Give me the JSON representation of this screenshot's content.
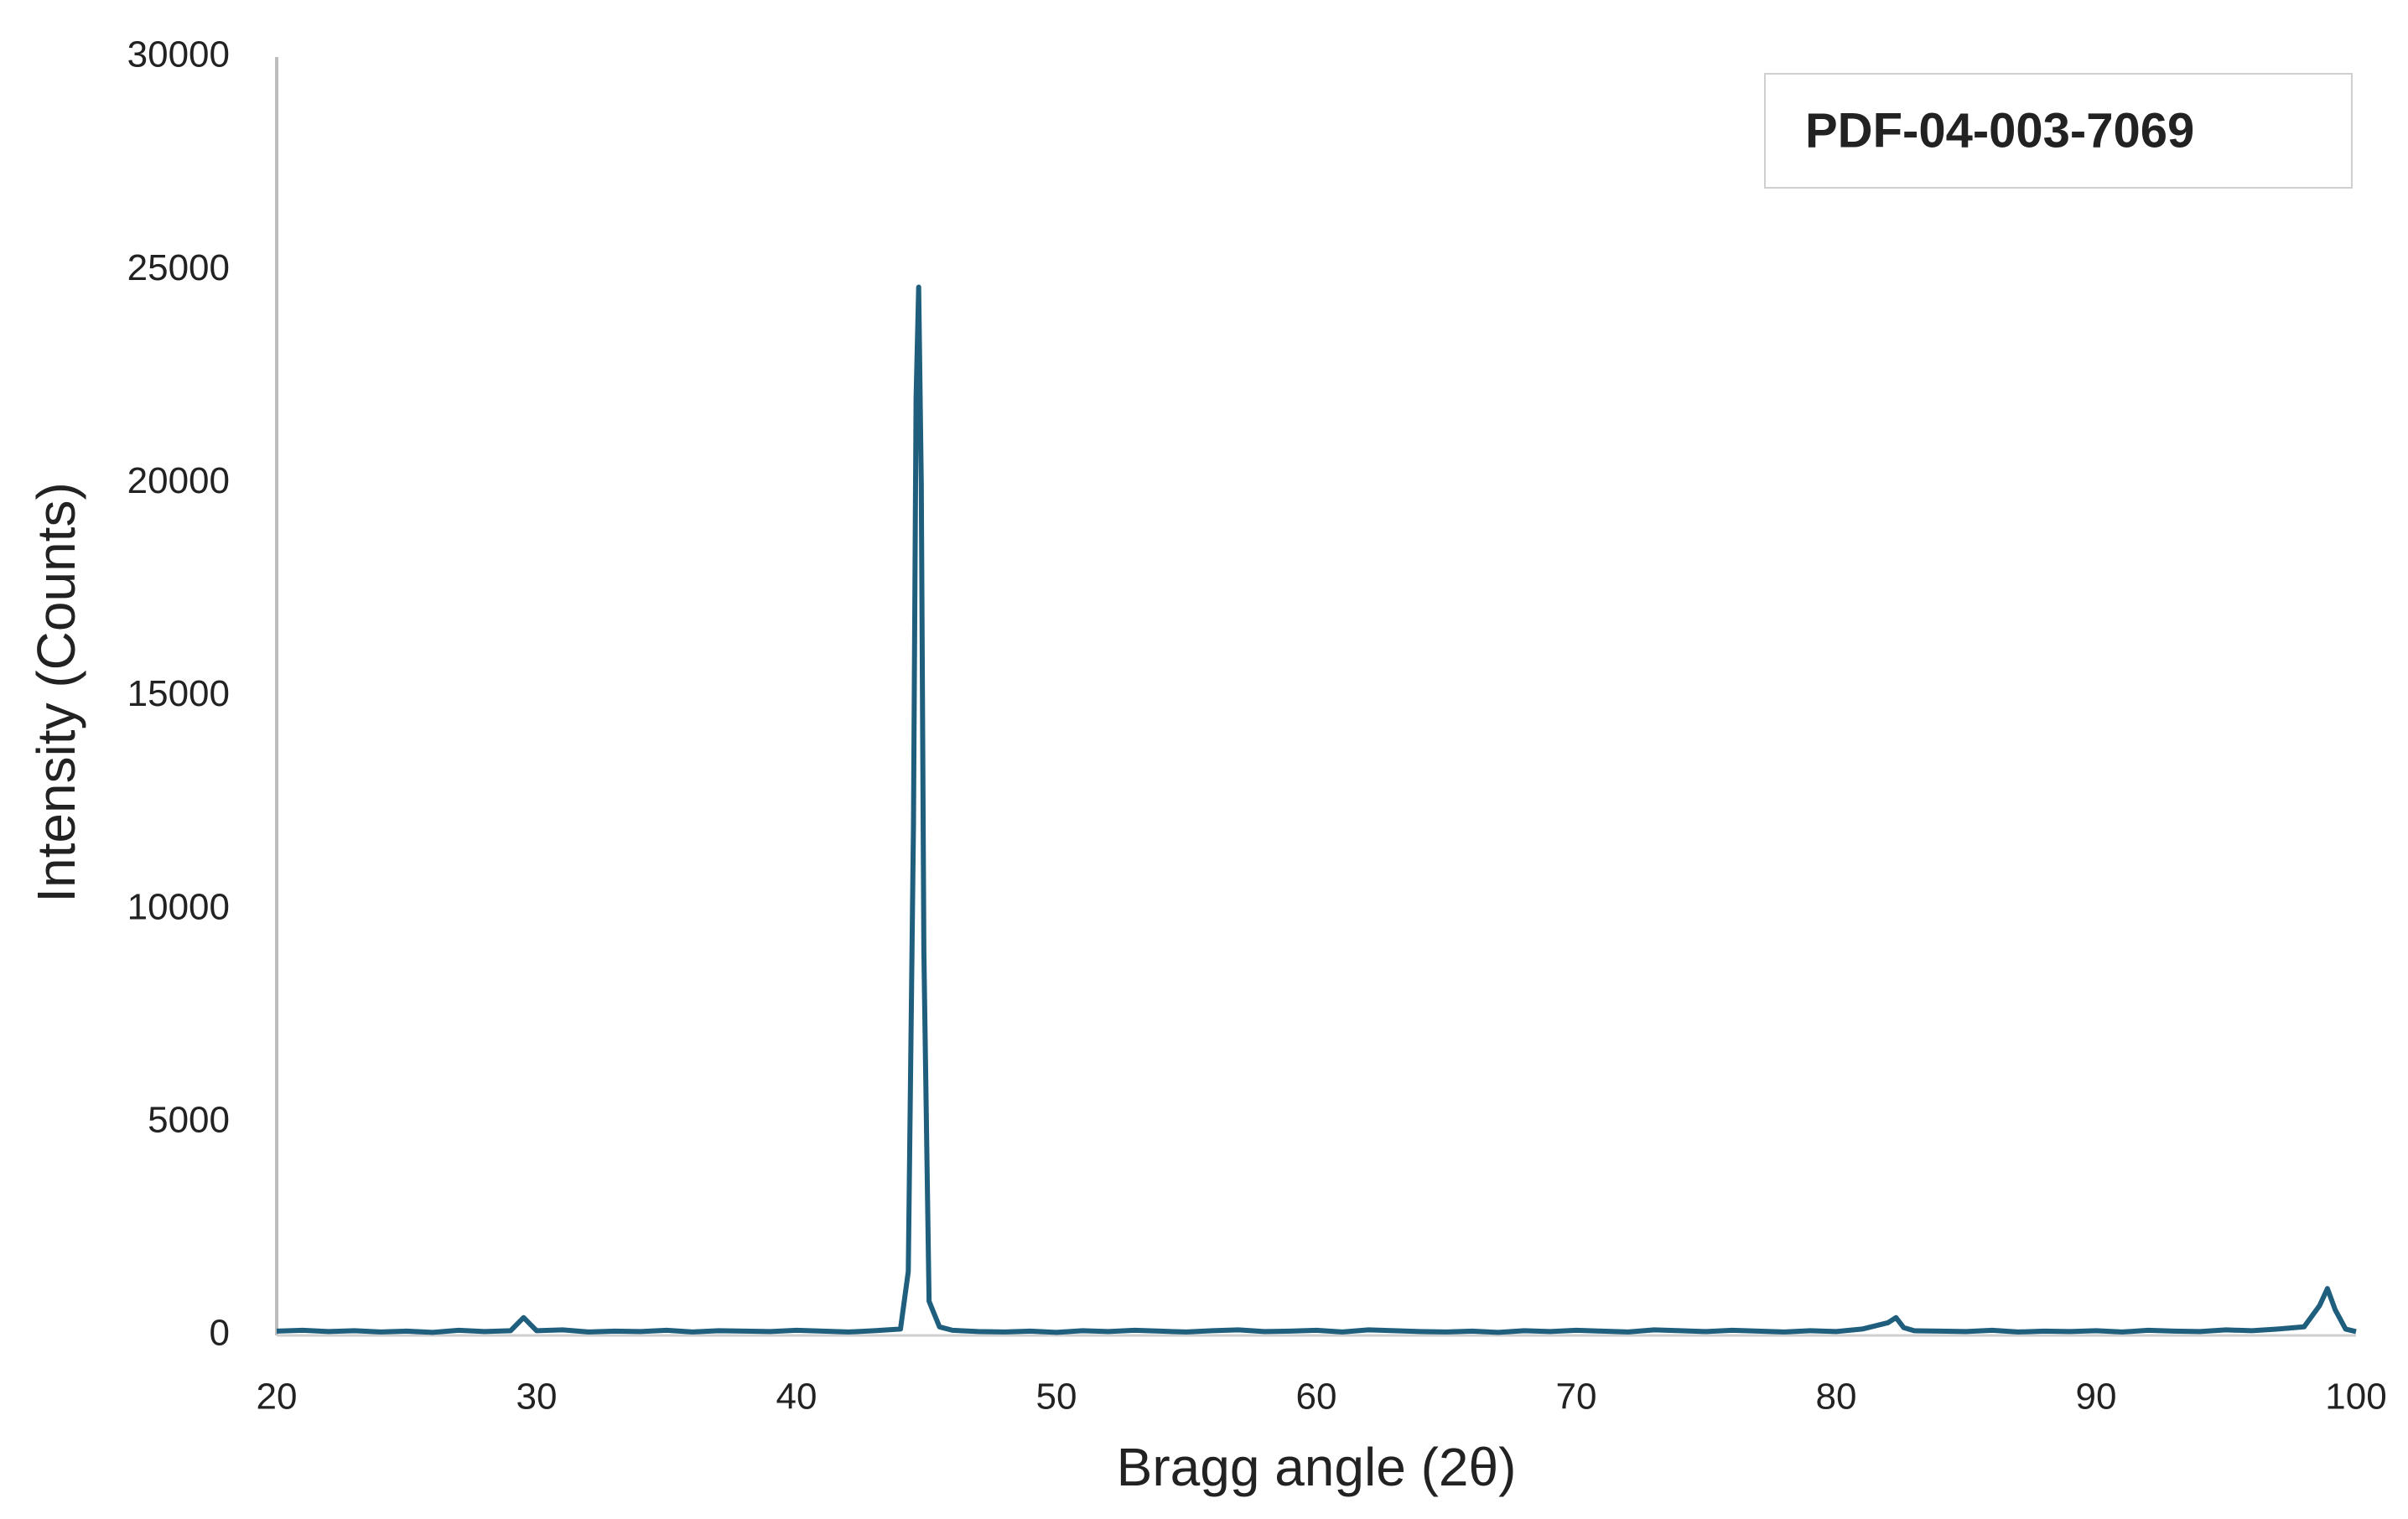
{
  "chart_data": {
    "type": "line",
    "xlabel": "Bragg angle (2θ)",
    "ylabel": "Intensity (Counts)",
    "x": [
      20,
      21,
      22,
      23,
      24,
      25,
      26,
      27,
      28,
      29,
      29.5,
      30,
      31,
      32,
      33,
      34,
      35,
      36,
      37,
      38,
      39,
      40,
      41,
      42,
      43,
      44,
      44.3,
      44.5,
      44.6,
      44.7,
      44.8,
      44.9,
      45.1,
      45.5,
      46,
      47,
      48,
      49,
      50,
      51,
      52,
      53,
      54,
      55,
      56,
      57,
      58,
      59,
      60,
      61,
      62,
      63,
      64,
      65,
      66,
      67,
      68,
      69,
      70,
      71,
      72,
      73,
      74,
      75,
      76,
      77,
      78,
      79,
      80,
      81,
      82,
      82.3,
      82.6,
      83,
      84,
      85,
      86,
      87,
      88,
      89,
      90,
      91,
      92,
      93,
      94,
      95,
      96,
      97,
      98,
      98.6,
      98.9,
      99.2,
      99.6,
      100
    ],
    "series": [
      {
        "name": "PDF-04-003-7069",
        "color": "#1f5e7d",
        "values": [
          100,
          120,
          90,
          110,
          80,
          100,
          70,
          120,
          90,
          110,
          420,
          110,
          130,
          80,
          100,
          90,
          120,
          80,
          110,
          100,
          90,
          120,
          100,
          80,
          110,
          150,
          1500,
          12000,
          22000,
          24600,
          20000,
          9000,
          800,
          200,
          120,
          90,
          80,
          100,
          70,
          110,
          90,
          120,
          100,
          80,
          110,
          130,
          90,
          100,
          120,
          80,
          130,
          110,
          90,
          80,
          100,
          70,
          110,
          90,
          120,
          100,
          80,
          130,
          110,
          90,
          120,
          100,
          80,
          110,
          90,
          150,
          300,
          420,
          180,
          110,
          100,
          90,
          120,
          80,
          100,
          90,
          110,
          80,
          120,
          100,
          90,
          130,
          110,
          150,
          200,
          700,
          1100,
          600,
          150,
          90
        ]
      }
    ],
    "xlim": [
      20,
      100
    ],
    "xticks": [
      20,
      30,
      40,
      50,
      60,
      70,
      80,
      90,
      100
    ],
    "ylim": [
      0,
      30000
    ],
    "yticks": [
      0,
      5000,
      10000,
      15000,
      20000,
      25000,
      30000
    ],
    "legend": "upper right",
    "grid": false
  }
}
